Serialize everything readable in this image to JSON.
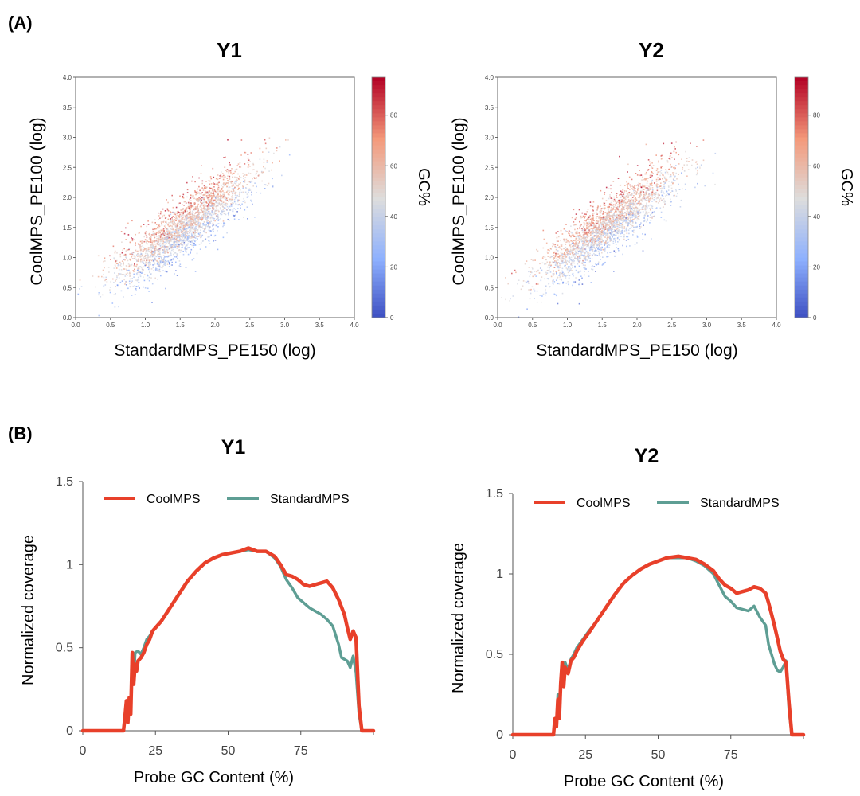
{
  "panel_labels": {
    "a": "(A)",
    "b": "(B)"
  },
  "chart_data": [
    {
      "type": "scatter",
      "title": "Y1",
      "xlabel": "StandardMPS_PE150 (log)",
      "ylabel": "CoolMPS_PE100 (log)",
      "xlim": [
        0,
        4
      ],
      "ylim": [
        0,
        4
      ],
      "xticks": [
        "0.0",
        "0.5",
        "1.0",
        "1.5",
        "2.0",
        "2.5",
        "3.0",
        "3.5",
        "4.0"
      ],
      "yticks": [
        "0.0",
        "0.5",
        "1.0",
        "1.5",
        "2.0",
        "2.5",
        "3.0",
        "3.5",
        "4.0"
      ],
      "colorbar": {
        "label": "GC%",
        "range": [
          0,
          95
        ],
        "ticks": [
          "0",
          "20",
          "40",
          "60",
          "80"
        ],
        "colormap": "coolwarm"
      },
      "point_cloud": {
        "x_range": [
          0,
          3.2
        ],
        "trend": "y ≈ x",
        "colored_by": "GC%"
      }
    },
    {
      "type": "scatter",
      "title": "Y2",
      "xlabel": "StandardMPS_PE150 (log)",
      "ylabel": "CoolMPS_PE100 (log)",
      "xlim": [
        0,
        4
      ],
      "ylim": [
        0,
        4
      ],
      "xticks": [
        "0.0",
        "0.5",
        "1.0",
        "1.5",
        "2.0",
        "2.5",
        "3.0",
        "3.5",
        "4.0"
      ],
      "yticks": [
        "0.0",
        "0.5",
        "1.0",
        "1.5",
        "2.0",
        "2.5",
        "3.0",
        "3.5",
        "4.0"
      ],
      "colorbar": {
        "label": "GC%",
        "range": [
          0,
          95
        ],
        "ticks": [
          "0",
          "20",
          "40",
          "60",
          "80"
        ],
        "colormap": "coolwarm"
      },
      "point_cloud": {
        "x_range": [
          0,
          3.2
        ],
        "trend": "y ≈ x",
        "colored_by": "GC%"
      }
    },
    {
      "type": "line",
      "title": "Y1",
      "xlabel": "Probe GC Content (%)",
      "ylabel": "Normalized coverage",
      "xlim": [
        0,
        100
      ],
      "ylim": [
        0,
        1.5
      ],
      "xticks": [
        "0",
        "25",
        "50",
        "75"
      ],
      "yticks": [
        "0",
        "0.5",
        "1",
        "1.5"
      ],
      "legend": "top-left",
      "series": [
        {
          "name": "CoolMPS",
          "color": "#e8402a",
          "points": [
            [
              0,
              0
            ],
            [
              14,
              0
            ],
            [
              14.5,
              0.08
            ],
            [
              15,
              0.18
            ],
            [
              15.5,
              0.05
            ],
            [
              16,
              0.2
            ],
            [
              16.5,
              0.1
            ],
            [
              17,
              0.47
            ],
            [
              17.5,
              0.28
            ],
            [
              18,
              0.4
            ],
            [
              18.5,
              0.36
            ],
            [
              19,
              0.42
            ],
            [
              20,
              0.44
            ],
            [
              21,
              0.47
            ],
            [
              22,
              0.52
            ],
            [
              23,
              0.55
            ],
            [
              24,
              0.6
            ],
            [
              25,
              0.62
            ],
            [
              27,
              0.66
            ],
            [
              30,
              0.74
            ],
            [
              33,
              0.82
            ],
            [
              36,
              0.9
            ],
            [
              39,
              0.96
            ],
            [
              42,
              1.01
            ],
            [
              45,
              1.04
            ],
            [
              48,
              1.06
            ],
            [
              51,
              1.07
            ],
            [
              54,
              1.08
            ],
            [
              57,
              1.1
            ],
            [
              60,
              1.08
            ],
            [
              63,
              1.08
            ],
            [
              66,
              1.05
            ],
            [
              68,
              1.0
            ],
            [
              70,
              0.94
            ],
            [
              72,
              0.93
            ],
            [
              74,
              0.91
            ],
            [
              76,
              0.88
            ],
            [
              78,
              0.87
            ],
            [
              80,
              0.88
            ],
            [
              82,
              0.89
            ],
            [
              84,
              0.9
            ],
            [
              86,
              0.86
            ],
            [
              88,
              0.79
            ],
            [
              90,
              0.7
            ],
            [
              91,
              0.62
            ],
            [
              92,
              0.55
            ],
            [
              93,
              0.6
            ],
            [
              94,
              0.56
            ],
            [
              95,
              0.15
            ],
            [
              96,
              0
            ],
            [
              100,
              0
            ]
          ]
        },
        {
          "name": "StandardMPS",
          "color": "#5e9e94",
          "points": [
            [
              0,
              0
            ],
            [
              14,
              0
            ],
            [
              14.5,
              0.08
            ],
            [
              15,
              0.16
            ],
            [
              15.5,
              0.05
            ],
            [
              16,
              0.2
            ],
            [
              16.5,
              0.12
            ],
            [
              17,
              0.42
            ],
            [
              17.5,
              0.3
            ],
            [
              18,
              0.47
            ],
            [
              19,
              0.48
            ],
            [
              20,
              0.46
            ],
            [
              21,
              0.5
            ],
            [
              22,
              0.55
            ],
            [
              23,
              0.57
            ],
            [
              24,
              0.6
            ],
            [
              25,
              0.62
            ],
            [
              27,
              0.66
            ],
            [
              30,
              0.74
            ],
            [
              33,
              0.82
            ],
            [
              36,
              0.9
            ],
            [
              39,
              0.96
            ],
            [
              42,
              1.01
            ],
            [
              45,
              1.04
            ],
            [
              48,
              1.06
            ],
            [
              51,
              1.07
            ],
            [
              54,
              1.08
            ],
            [
              57,
              1.09
            ],
            [
              60,
              1.08
            ],
            [
              63,
              1.08
            ],
            [
              66,
              1.04
            ],
            [
              68,
              0.99
            ],
            [
              70,
              0.91
            ],
            [
              72,
              0.86
            ],
            [
              74,
              0.8
            ],
            [
              76,
              0.77
            ],
            [
              78,
              0.74
            ],
            [
              80,
              0.72
            ],
            [
              82,
              0.7
            ],
            [
              84,
              0.67
            ],
            [
              86,
              0.63
            ],
            [
              88,
              0.52
            ],
            [
              89,
              0.44
            ],
            [
              90,
              0.43
            ],
            [
              91,
              0.42
            ],
            [
              92,
              0.38
            ],
            [
              93,
              0.45
            ],
            [
              94,
              0.35
            ],
            [
              95,
              0.1
            ],
            [
              96,
              0
            ],
            [
              100,
              0
            ]
          ]
        }
      ]
    },
    {
      "type": "line",
      "title": "Y2",
      "xlabel": "Probe GC Content (%)",
      "ylabel": "Normalized coverage",
      "xlim": [
        0,
        100
      ],
      "ylim": [
        0,
        1.5
      ],
      "xticks": [
        "0",
        "25",
        "50",
        "75"
      ],
      "yticks": [
        "0",
        "0.5",
        "1",
        "1.5"
      ],
      "legend": "top-left",
      "series": [
        {
          "name": "CoolMPS",
          "color": "#e8402a",
          "points": [
            [
              0,
              0
            ],
            [
              14,
              0
            ],
            [
              14.5,
              0.1
            ],
            [
              15,
              0.05
            ],
            [
              15.5,
              0.22
            ],
            [
              16,
              0.1
            ],
            [
              16.5,
              0.32
            ],
            [
              17,
              0.45
            ],
            [
              17.5,
              0.3
            ],
            [
              18,
              0.42
            ],
            [
              19,
              0.38
            ],
            [
              20,
              0.46
            ],
            [
              21,
              0.48
            ],
            [
              22,
              0.52
            ],
            [
              24,
              0.58
            ],
            [
              26,
              0.63
            ],
            [
              29,
              0.71
            ],
            [
              32,
              0.79
            ],
            [
              35,
              0.87
            ],
            [
              38,
              0.94
            ],
            [
              41,
              0.99
            ],
            [
              44,
              1.03
            ],
            [
              47,
              1.06
            ],
            [
              50,
              1.08
            ],
            [
              53,
              1.1
            ],
            [
              57,
              1.11
            ],
            [
              60,
              1.1
            ],
            [
              63,
              1.09
            ],
            [
              66,
              1.06
            ],
            [
              69,
              1.02
            ],
            [
              71,
              0.97
            ],
            [
              73,
              0.93
            ],
            [
              75,
              0.91
            ],
            [
              77,
              0.88
            ],
            [
              79,
              0.89
            ],
            [
              81,
              0.9
            ],
            [
              83,
              0.92
            ],
            [
              85,
              0.91
            ],
            [
              87,
              0.88
            ],
            [
              88,
              0.82
            ],
            [
              89,
              0.75
            ],
            [
              90,
              0.68
            ],
            [
              91,
              0.6
            ],
            [
              92,
              0.52
            ],
            [
              93,
              0.47
            ],
            [
              94,
              0.45
            ],
            [
              95,
              0.2
            ],
            [
              96,
              0
            ],
            [
              100,
              0
            ]
          ]
        },
        {
          "name": "StandardMPS",
          "color": "#5e9e94",
          "points": [
            [
              0,
              0
            ],
            [
              14,
              0
            ],
            [
              14.5,
              0.1
            ],
            [
              15,
              0.05
            ],
            [
              15.5,
              0.25
            ],
            [
              16,
              0.12
            ],
            [
              16.5,
              0.3
            ],
            [
              17,
              0.42
            ],
            [
              17.5,
              0.32
            ],
            [
              18,
              0.45
            ],
            [
              19,
              0.4
            ],
            [
              20,
              0.47
            ],
            [
              21,
              0.5
            ],
            [
              22,
              0.54
            ],
            [
              24,
              0.59
            ],
            [
              26,
              0.64
            ],
            [
              29,
              0.71
            ],
            [
              32,
              0.79
            ],
            [
              35,
              0.87
            ],
            [
              38,
              0.94
            ],
            [
              41,
              0.99
            ],
            [
              44,
              1.03
            ],
            [
              47,
              1.06
            ],
            [
              50,
              1.08
            ],
            [
              53,
              1.1
            ],
            [
              57,
              1.1
            ],
            [
              60,
              1.1
            ],
            [
              63,
              1.08
            ],
            [
              66,
              1.05
            ],
            [
              69,
              1.0
            ],
            [
              71,
              0.93
            ],
            [
              73,
              0.86
            ],
            [
              75,
              0.83
            ],
            [
              77,
              0.79
            ],
            [
              79,
              0.78
            ],
            [
              81,
              0.77
            ],
            [
              83,
              0.8
            ],
            [
              85,
              0.73
            ],
            [
              87,
              0.68
            ],
            [
              88,
              0.56
            ],
            [
              89,
              0.5
            ],
            [
              90,
              0.44
            ],
            [
              91,
              0.4
            ],
            [
              92,
              0.39
            ],
            [
              93,
              0.42
            ],
            [
              94,
              0.46
            ],
            [
              95,
              0.15
            ],
            [
              96,
              0
            ],
            [
              100,
              0
            ]
          ]
        }
      ]
    }
  ]
}
